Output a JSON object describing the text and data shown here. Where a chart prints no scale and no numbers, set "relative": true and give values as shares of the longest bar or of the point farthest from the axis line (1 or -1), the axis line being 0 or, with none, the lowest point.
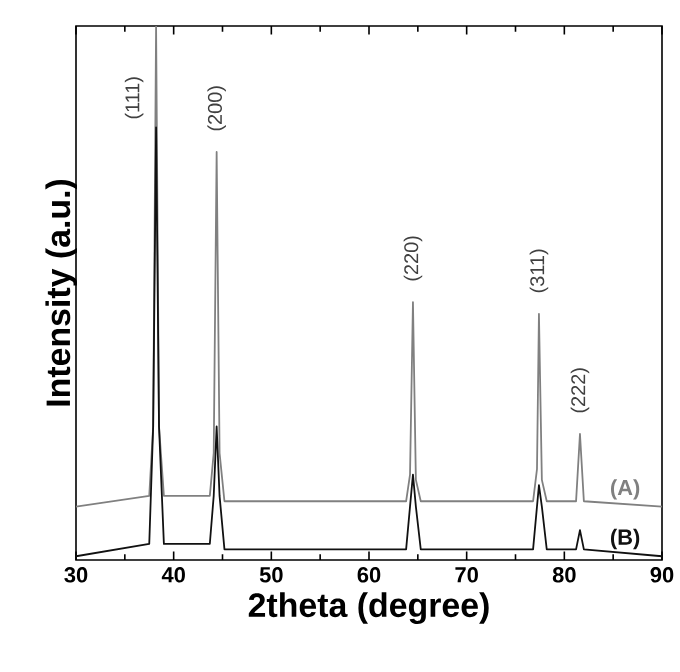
{
  "chart_data": {
    "type": "line",
    "relative": true,
    "xlabel": "2theta (degree)",
    "ylabel": "Intensity (a.u.)",
    "xlim": [
      30,
      90
    ],
    "xticks": [
      30,
      40,
      50,
      60,
      70,
      80,
      90
    ],
    "x": [
      30,
      37.5,
      37.9,
      38.2,
      38.5,
      39,
      43.7,
      44.1,
      44.4,
      44.7,
      45.2,
      63.8,
      64.2,
      64.5,
      64.8,
      65.3,
      76.8,
      77.2,
      77.4,
      77.7,
      78.2,
      81.2,
      81.6,
      82.0,
      90
    ],
    "series": [
      {
        "name": "(A)",
        "color": "#808080",
        "values": [
          0.1,
          0.12,
          0.25,
          1.0,
          0.25,
          0.12,
          0.12,
          0.2,
          0.764,
          0.2,
          0.11,
          0.11,
          0.16,
          0.483,
          0.15,
          0.11,
          0.11,
          0.17,
          0.461,
          0.15,
          0.11,
          0.11,
          0.236,
          0.11,
          0.1
        ]
      },
      {
        "name": "(B)",
        "color": "#111111",
        "values": [
          0.007,
          0.03,
          0.25,
          0.81,
          0.25,
          0.03,
          0.03,
          0.12,
          0.25,
          0.12,
          0.02,
          0.02,
          0.1,
          0.16,
          0.1,
          0.02,
          0.02,
          0.1,
          0.14,
          0.1,
          0.02,
          0.02,
          0.056,
          0.02,
          0.007
        ]
      }
    ],
    "annotations": [
      {
        "text": "(111)",
        "x": 38.2,
        "y": 1.0
      },
      {
        "text": "(200)",
        "x": 44.4,
        "y": 0.764
      },
      {
        "text": "(220)",
        "x": 64.5,
        "y": 0.483
      },
      {
        "text": "(311)",
        "x": 77.4,
        "y": 0.461
      },
      {
        "text": "(222)",
        "x": 81.6,
        "y": 0.236
      }
    ],
    "grid": false
  }
}
